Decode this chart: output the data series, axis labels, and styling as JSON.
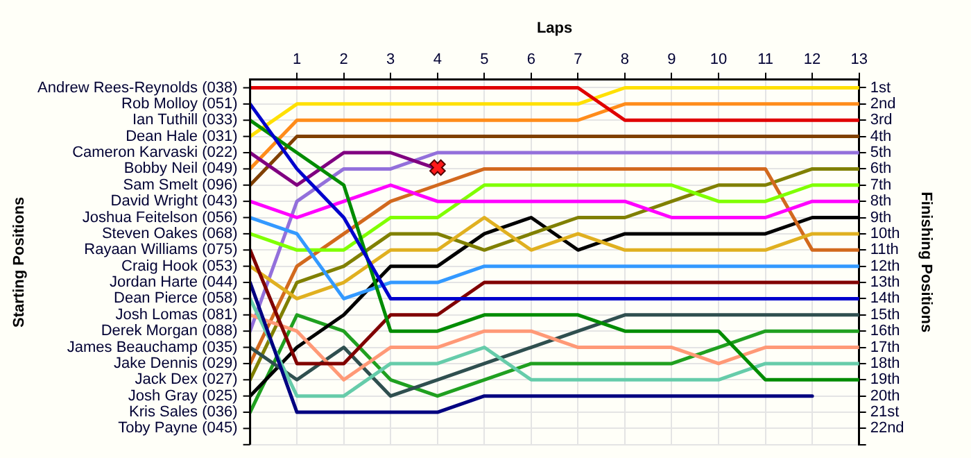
{
  "chart_data": {
    "type": "line",
    "xlabel": "Laps",
    "ylabel": "Finishing Positions",
    "x": [
      0,
      1,
      2,
      3,
      4,
      5,
      6,
      7,
      8,
      9,
      10,
      11,
      12,
      13
    ],
    "xlim": [
      0,
      13
    ],
    "xticks": [
      1,
      2,
      3,
      4,
      5,
      6,
      7,
      8,
      9,
      10,
      11,
      12,
      13
    ],
    "ylim": [
      23,
      0.5
    ],
    "yticks": [
      {
        "value": 1,
        "label": "1st"
      },
      {
        "value": 2,
        "label": "2nd"
      },
      {
        "value": 3,
        "label": "3rd"
      },
      {
        "value": 4,
        "label": "4th"
      },
      {
        "value": 5,
        "label": "5th"
      },
      {
        "value": 6,
        "label": "6th"
      },
      {
        "value": 7,
        "label": "7th"
      },
      {
        "value": 8,
        "label": "8th"
      },
      {
        "value": 9,
        "label": "9th"
      },
      {
        "value": 10,
        "label": "10th"
      },
      {
        "value": 11,
        "label": "11th"
      },
      {
        "value": 12,
        "label": "12th"
      },
      {
        "value": 13,
        "label": "13th"
      },
      {
        "value": 14,
        "label": "14th"
      },
      {
        "value": 15,
        "label": "15th"
      },
      {
        "value": 16,
        "label": "16th"
      },
      {
        "value": 17,
        "label": "17th"
      },
      {
        "value": 18,
        "label": "18th"
      },
      {
        "value": 19,
        "label": "19th"
      },
      {
        "value": 20,
        "label": "20th"
      },
      {
        "value": 21,
        "label": "21st"
      },
      {
        "value": 22,
        "label": "22nd"
      },
      {
        "value": 23,
        "label": null
      }
    ],
    "grid": true,
    "marker": "none",
    "line_style": "solid",
    "annotations": [
      "Starting Positions",
      "Andrew Rees-Reynolds (038)",
      "Rob Molloy (051)",
      "Ian Tuthill (033)",
      "Dean Hale (031)",
      "Cameron Karvaski (022)",
      "Bobby Neil (049)",
      "Sam Smelt (096)",
      "David Wright (043)",
      "Joshua Feitelson (056)",
      "Steven Oakes (068)",
      "Rayaan Williams (075)",
      "Craig Hook (053)",
      "Jordan Harte (044)",
      "Dean Pierce (058)",
      "Josh Lomas (081)",
      "Derek Morgan (088)",
      "James Beauchamp (035)",
      "Jake Dennis (029)",
      "Jack Dex (027)",
      "Josh Gray (025)",
      "Kris Sales (036)",
      "Toby Payne (045)",
      {
        "text": "✖",
        "x": 4,
        "y": 6
      }
    ],
    "series": [
      {
        "color": "#e00000",
        "values": [
          1,
          1,
          1,
          1,
          1,
          1,
          1,
          1,
          3,
          3,
          3,
          3,
          3,
          3
        ]
      },
      {
        "color": "#0000cc",
        "values": [
          2,
          6,
          9,
          14,
          14,
          14,
          14,
          14,
          14,
          14,
          14,
          14,
          14,
          14
        ]
      },
      {
        "color": "#008c00",
        "values": [
          3,
          5,
          7,
          16,
          16,
          15,
          15,
          15,
          16,
          16,
          16,
          19,
          19,
          19
        ]
      },
      {
        "color": "#ffe000",
        "values": [
          4,
          2,
          2,
          2,
          2,
          2,
          2,
          2,
          1,
          1,
          1,
          1,
          1,
          1
        ]
      },
      {
        "color": "#800080",
        "values": [
          5,
          7,
          5,
          5,
          6,
          null,
          null,
          null,
          null,
          null,
          null,
          null,
          null,
          null
        ]
      },
      {
        "color": "#ff8c1a",
        "values": [
          6,
          3,
          3,
          3,
          3,
          3,
          3,
          3,
          2,
          2,
          2,
          2,
          2,
          2
        ]
      },
      {
        "color": "#804000",
        "values": [
          7,
          4,
          4,
          4,
          4,
          4,
          4,
          4,
          4,
          4,
          4,
          4,
          4,
          4
        ]
      },
      {
        "color": "#ff00ff",
        "values": [
          8,
          9,
          8,
          7,
          8,
          8,
          8,
          8,
          8,
          9,
          9,
          9,
          8,
          8
        ]
      },
      {
        "color": "#3399ff",
        "values": [
          9,
          10,
          14,
          13,
          13,
          12,
          12,
          12,
          12,
          12,
          12,
          12,
          12,
          12
        ]
      },
      {
        "color": "#80ff00",
        "values": [
          10,
          11,
          11,
          9,
          9,
          7,
          7,
          7,
          7,
          7,
          8,
          8,
          7,
          7
        ]
      },
      {
        "color": "#800000",
        "values": [
          11,
          18,
          18,
          15,
          15,
          13,
          13,
          13,
          13,
          13,
          13,
          13,
          13,
          13
        ]
      },
      {
        "color": "#e0b020",
        "values": [
          12,
          14,
          13,
          11,
          11,
          9,
          11,
          10,
          11,
          11,
          11,
          11,
          10,
          10
        ]
      },
      {
        "color": "#000080",
        "values": [
          13,
          21,
          21,
          21,
          21,
          20,
          20,
          20,
          20,
          20,
          20,
          20,
          20,
          null
        ]
      },
      {
        "color": "#66ccaa",
        "values": [
          14,
          20,
          20,
          18,
          18,
          17,
          19,
          19,
          19,
          19,
          19,
          18,
          18,
          18
        ]
      },
      {
        "color": "#ff9977",
        "values": [
          15,
          16,
          19,
          17,
          17,
          16,
          16,
          17,
          17,
          17,
          18,
          17,
          17,
          17
        ]
      },
      {
        "color": "#9370db",
        "values": [
          16,
          8,
          6,
          6,
          5,
          5,
          5,
          5,
          5,
          5,
          5,
          5,
          5,
          5
        ]
      },
      {
        "color": "#2f4f4f",
        "values": [
          17,
          19,
          17,
          20,
          19,
          18,
          17,
          16,
          15,
          15,
          15,
          15,
          15,
          15
        ]
      },
      {
        "color": "#d2691e",
        "values": [
          18,
          12,
          10,
          8,
          7,
          6,
          6,
          6,
          6,
          6,
          6,
          6,
          11,
          11
        ]
      },
      {
        "color": "#808000",
        "values": [
          19,
          13,
          12,
          10,
          10,
          11,
          10,
          9,
          9,
          8,
          7,
          7,
          6,
          6
        ]
      },
      {
        "color": "#000000",
        "values": [
          20,
          17,
          15,
          12,
          12,
          10,
          9,
          11,
          10,
          10,
          10,
          10,
          9,
          9
        ]
      },
      {
        "color": "#20a020",
        "values": [
          21,
          15,
          16,
          19,
          20,
          19,
          18,
          18,
          18,
          18,
          17,
          16,
          16,
          16
        ]
      }
    ]
  }
}
